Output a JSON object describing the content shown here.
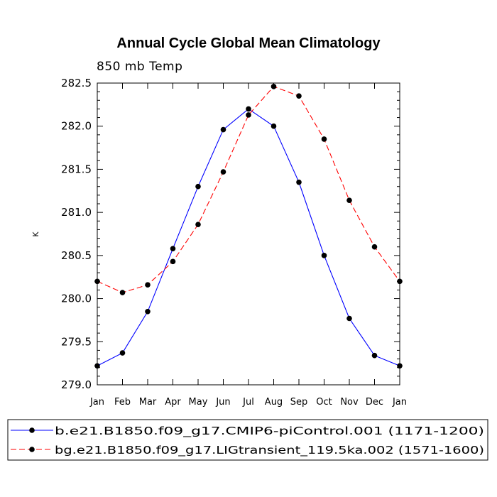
{
  "chart_data": {
    "type": "line",
    "title": "Annual Cycle Global Mean Climatology",
    "subtitle": "850 mb Temp",
    "xlabel": "",
    "ylabel": "K",
    "categories": [
      "Jan",
      "Feb",
      "Mar",
      "Apr",
      "May",
      "Jun",
      "Jul",
      "Aug",
      "Sep",
      "Oct",
      "Nov",
      "Dec",
      "Jan"
    ],
    "ylim": [
      279.0,
      282.5
    ],
    "yticks": [
      "279.0",
      "279.5",
      "280.0",
      "280.5",
      "281.0",
      "281.5",
      "282.0",
      "282.5"
    ],
    "series": [
      {
        "name": "b.e21.B1850.f09_g17.CMIP6-piControl.001 (1171-1200)",
        "color": "#0000ff",
        "style": "solid",
        "values": [
          279.22,
          279.37,
          279.85,
          280.58,
          281.3,
          281.96,
          282.2,
          282.0,
          281.35,
          280.5,
          279.77,
          279.34,
          279.22
        ]
      },
      {
        "name": "bg.e21.B1850.f09_g17.LIGtransient_119.5ka.002 (1571-1600)",
        "color": "#ff0000",
        "style": "dashed",
        "values": [
          280.2,
          280.07,
          280.16,
          280.43,
          280.86,
          281.47,
          282.13,
          282.46,
          282.35,
          281.85,
          281.14,
          280.6,
          280.2
        ]
      }
    ],
    "legend_position": "bottom"
  }
}
